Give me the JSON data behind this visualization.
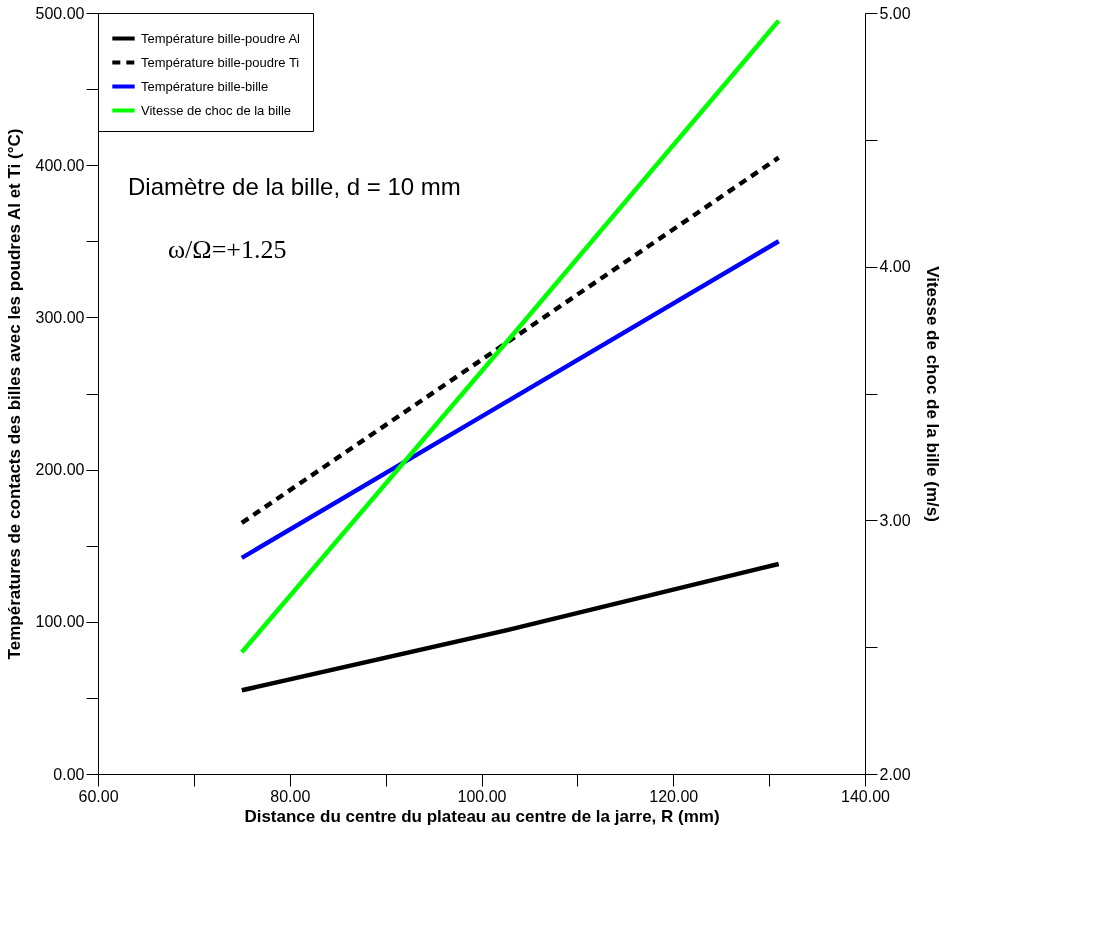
{
  "chart_data": {
    "type": "line",
    "xlabel": "Distance du centre du plateau au centre de la jarre, R (mm)",
    "ylabel": "Températures de contacts des billes avec les poudres Al et Ti (°C)",
    "y2label": "Vitesse de choc de la bille (m/s)",
    "xlim": [
      60,
      140
    ],
    "ylim": [
      0,
      500
    ],
    "y2lim": [
      2,
      5
    ],
    "xticks": [
      {
        "value": 60,
        "label": "60.00"
      },
      {
        "value": 70,
        "label": null
      },
      {
        "value": 80,
        "label": "80.00"
      },
      {
        "value": 90,
        "label": null
      },
      {
        "value": 100,
        "label": "100.00"
      },
      {
        "value": 110,
        "label": null
      },
      {
        "value": 120,
        "label": "120.00"
      },
      {
        "value": 130,
        "label": null
      },
      {
        "value": 140,
        "label": "140.00"
      }
    ],
    "yticks": [
      {
        "value": 0,
        "label": "0.00"
      },
      {
        "value": 50,
        "label": null
      },
      {
        "value": 100,
        "label": "100.00"
      },
      {
        "value": 150,
        "label": null
      },
      {
        "value": 200,
        "label": "200.00"
      },
      {
        "value": 250,
        "label": null
      },
      {
        "value": 300,
        "label": "300.00"
      },
      {
        "value": 350,
        "label": null
      },
      {
        "value": 400,
        "label": "400.00"
      },
      {
        "value": 450,
        "label": null
      },
      {
        "value": 500,
        "label": "500.00"
      }
    ],
    "y2ticks": [
      {
        "value": 2,
        "label": "2.00"
      },
      {
        "value": 2.5,
        "label": null
      },
      {
        "value": 3,
        "label": "3.00"
      },
      {
        "value": 3.5,
        "label": null
      },
      {
        "value": 4,
        "label": "4.00"
      },
      {
        "value": 4.5,
        "label": null
      },
      {
        "value": 5,
        "label": "5.00"
      }
    ],
    "grid": false,
    "legend": "top left",
    "marker": "none",
    "annotations": [
      "Diamètre de la bille, d = 10 mm",
      "ω/Ω=+1.25"
    ],
    "x": [
      75,
      103,
      131
    ],
    "series": [
      {
        "name": "Température bille-poudre Al",
        "color": "#000000",
        "line_style": "solid",
        "values": [
          55,
          95,
          138
        ]
      },
      {
        "name": "Température bille-poudre Ti",
        "color": "#000000",
        "line_style": "dashed",
        "values": [
          165,
          285,
          405
        ]
      },
      {
        "name": "Température bille-bille",
        "color": "#0000ff",
        "line_style": "solid",
        "values": [
          142,
          246,
          350
        ]
      },
      {
        "name": "Vitesse de choc de la bille",
        "color": "#00ff00",
        "line_style": "solid",
        "axis": "y2",
        "values": [
          2.48,
          3.72,
          4.97
        ]
      }
    ]
  }
}
